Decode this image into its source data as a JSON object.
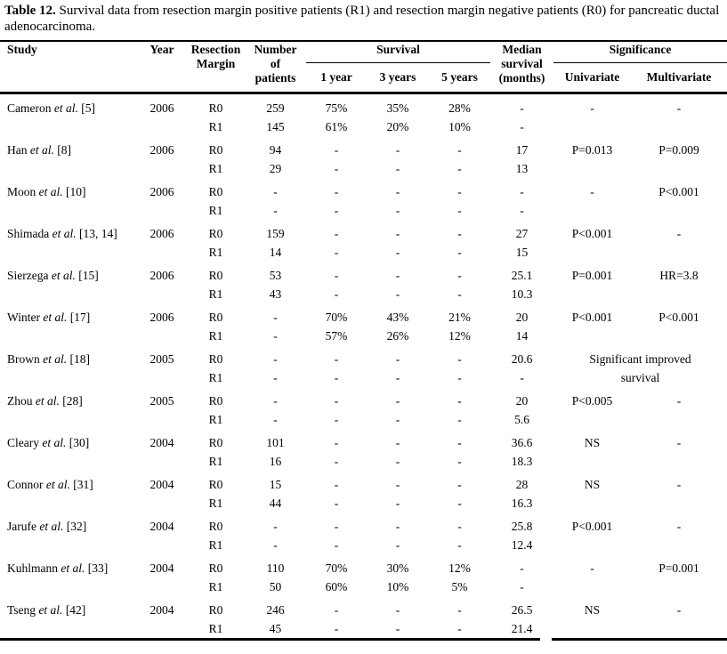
{
  "caption": {
    "label": "Table 12.",
    "text": " Survival data from resection margin positive patients (R1) and resection margin negative patients (R0) for pancreatic ductal adenocarcinoma."
  },
  "header": {
    "study": "Study",
    "year": "Year",
    "resection_margin": "Resection\nMargin",
    "number_of_patients": "Number\nof\npatients",
    "survival_group": "Survival",
    "survival_1yr": "1 year",
    "survival_3yr": "3 years",
    "survival_5yr": "5 years",
    "median_survival": "Median\nsurvival\n(months)",
    "significance_group": "Significance",
    "univariate": "Univariate",
    "multivariate": "Multivariate"
  },
  "studies": [
    {
      "name_pre": "Cameron",
      "name_italic": "et al.",
      "name_post": "[5]",
      "year": "2006",
      "rows": [
        {
          "margin": "R0",
          "n": "259",
          "y1": "75%",
          "y3": "35%",
          "y5": "28%",
          "median": "-",
          "uni": "-",
          "multi": "-"
        },
        {
          "margin": "R1",
          "n": "145",
          "y1": "61%",
          "y3": "20%",
          "y5": "10%",
          "median": "-",
          "uni": "",
          "multi": ""
        }
      ]
    },
    {
      "name_pre": "Han",
      "name_italic": "et al.",
      "name_post": "[8]",
      "year": "2006",
      "rows": [
        {
          "margin": "R0",
          "n": "94",
          "y1": "-",
          "y3": "-",
          "y5": "-",
          "median": "17",
          "uni": "P=0.013",
          "multi": "P=0.009"
        },
        {
          "margin": "R1",
          "n": "29",
          "y1": "-",
          "y3": "-",
          "y5": "-",
          "median": "13",
          "uni": "",
          "multi": ""
        }
      ]
    },
    {
      "name_pre": "Moon",
      "name_italic": "et al.",
      "name_post": "[10]",
      "year": "2006",
      "rows": [
        {
          "margin": "R0",
          "n": "-",
          "y1": "-",
          "y3": "-",
          "y5": "-",
          "median": "-",
          "uni": "-",
          "multi": "P<0.001"
        },
        {
          "margin": "R1",
          "n": "-",
          "y1": "-",
          "y3": "-",
          "y5": "-",
          "median": "-",
          "uni": "",
          "multi": ""
        }
      ]
    },
    {
      "name_pre": "Shimada",
      "name_italic": "et al.",
      "name_post": "[13, 14]",
      "year": "2006",
      "rows": [
        {
          "margin": "R0",
          "n": "159",
          "y1": "-",
          "y3": "-",
          "y5": "-",
          "median": "27",
          "uni": "P<0.001",
          "multi": "-"
        },
        {
          "margin": "R1",
          "n": "14",
          "y1": "-",
          "y3": "-",
          "y5": "-",
          "median": "15",
          "uni": "",
          "multi": ""
        }
      ]
    },
    {
      "name_pre": "Sierzega",
      "name_italic": "et al.",
      "name_post": "[15]",
      "year": "2006",
      "rows": [
        {
          "margin": "R0",
          "n": "53",
          "y1": "-",
          "y3": "-",
          "y5": "-",
          "median": "25.1",
          "uni": "P=0.001",
          "multi": "HR=3.8"
        },
        {
          "margin": "R1",
          "n": "43",
          "y1": "-",
          "y3": "-",
          "y5": "-",
          "median": "10.3",
          "uni": "",
          "multi": ""
        }
      ]
    },
    {
      "name_pre": "Winter",
      "name_italic": "et al.",
      "name_post": "[17]",
      "year": "2006",
      "rows": [
        {
          "margin": "R0",
          "n": "-",
          "y1": "70%",
          "y3": "43%",
          "y5": "21%",
          "median": "20",
          "uni": "P<0.001",
          "multi": "P<0.001"
        },
        {
          "margin": "R1",
          "n": "-",
          "y1": "57%",
          "y3": "26%",
          "y5": "12%",
          "median": "14",
          "uni": "",
          "multi": ""
        }
      ]
    },
    {
      "name_pre": "Brown",
      "name_italic": "et al.",
      "name_post": "[18]",
      "year": "2005",
      "rows": [
        {
          "margin": "R0",
          "n": "-",
          "y1": "-",
          "y3": "-",
          "y5": "-",
          "median": "20.6",
          "sig": "Significant improved"
        },
        {
          "margin": "R1",
          "n": "-",
          "y1": "-",
          "y3": "-",
          "y5": "-",
          "median": "-",
          "sig": "survival"
        }
      ]
    },
    {
      "name_pre": "Zhou",
      "name_italic": "et al.",
      "name_post": "[28]",
      "year": "2005",
      "rows": [
        {
          "margin": "R0",
          "n": "-",
          "y1": "-",
          "y3": "-",
          "y5": "-",
          "median": "20",
          "uni": "P<0.005",
          "multi": "-"
        },
        {
          "margin": "R1",
          "n": "-",
          "y1": "-",
          "y3": "-",
          "y5": "-",
          "median": "5.6",
          "uni": "",
          "multi": ""
        }
      ]
    },
    {
      "name_pre": "Cleary",
      "name_italic": "et al.",
      "name_post": "[30]",
      "year": "2004",
      "rows": [
        {
          "margin": "R0",
          "n": "101",
          "y1": "-",
          "y3": "-",
          "y5": "-",
          "median": "36.6",
          "uni": "NS",
          "multi": "-"
        },
        {
          "margin": "R1",
          "n": "16",
          "y1": "-",
          "y3": "-",
          "y5": "-",
          "median": "18.3",
          "uni": "",
          "multi": ""
        }
      ]
    },
    {
      "name_pre": "Connor",
      "name_italic": "et al.",
      "name_post": "[31]",
      "year": "2004",
      "rows": [
        {
          "margin": "R0",
          "n": "15",
          "y1": "-",
          "y3": "-",
          "y5": "-",
          "median": "28",
          "uni": "NS",
          "multi": "-"
        },
        {
          "margin": "R1",
          "n": "44",
          "y1": "-",
          "y3": "-",
          "y5": "-",
          "median": "16.3",
          "uni": "",
          "multi": ""
        }
      ]
    },
    {
      "name_pre": "Jarufe",
      "name_italic": "et al.",
      "name_post": "[32]",
      "year": "2004",
      "rows": [
        {
          "margin": "R0",
          "n": "-",
          "y1": "-",
          "y3": "-",
          "y5": "-",
          "median": "25.8",
          "uni": "P<0.001",
          "multi": "-"
        },
        {
          "margin": "R1",
          "n": "-",
          "y1": "-",
          "y3": "-",
          "y5": "-",
          "median": "12.4",
          "uni": "",
          "multi": ""
        }
      ]
    },
    {
      "name_pre": "Kuhlmann",
      "name_italic": "et al.",
      "name_post": "[33]",
      "year": "2004",
      "rows": [
        {
          "margin": "R0",
          "n": "110",
          "y1": "70%",
          "y3": "30%",
          "y5": "12%",
          "median": "-",
          "uni": "-",
          "multi": "P=0.001"
        },
        {
          "margin": "R1",
          "n": "50",
          "y1": "60%",
          "y3": "10%",
          "y5": "5%",
          "median": "-",
          "uni": "",
          "multi": ""
        }
      ]
    },
    {
      "name_pre": "Tseng",
      "name_italic": "et al.",
      "name_post": "[42]",
      "year": "2004",
      "rows": [
        {
          "margin": "R0",
          "n": "246",
          "y1": "-",
          "y3": "-",
          "y5": "-",
          "median": "26.5",
          "uni": "NS",
          "multi": "-"
        },
        {
          "margin": "R1",
          "n": "45",
          "y1": "-",
          "y3": "-",
          "y5": "-",
          "median": "21.4",
          "uni": "",
          "multi": ""
        }
      ]
    }
  ]
}
